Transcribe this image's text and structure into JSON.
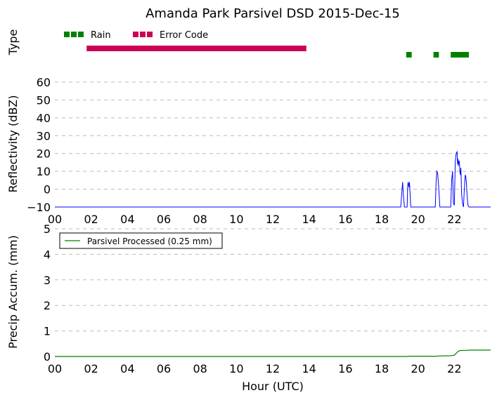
{
  "chart_data": [
    {
      "type": "timeline",
      "title": "Amanda Park Parsivel DSD 2015-Dec-15",
      "ylabel": "Type",
      "legend": [
        {
          "label": "Rain",
          "color": "#008000"
        },
        {
          "label": "Error Code",
          "color": "#cc0055"
        }
      ],
      "legend_position": "top-left",
      "xlim": [
        0,
        24
      ],
      "series": [
        {
          "name": "Error Code",
          "color": "#cc0055",
          "intervals": [
            [
              1.75,
              13.85
            ]
          ]
        },
        {
          "name": "Rain",
          "color": "#008000",
          "intervals": [
            [
              19.35,
              19.65
            ],
            [
              20.85,
              21.15
            ],
            [
              21.8,
              22.8
            ]
          ]
        }
      ]
    },
    {
      "type": "line",
      "ylabel": "Reflectivity (dBZ)",
      "xlim": [
        0,
        24
      ],
      "ylim": [
        -10,
        60
      ],
      "yticks": [
        -10,
        0,
        10,
        20,
        30,
        40,
        50,
        60
      ],
      "xticks": [
        "00",
        "02",
        "04",
        "06",
        "08",
        "10",
        "12",
        "14",
        "16",
        "18",
        "20",
        "22"
      ],
      "grid": "horizontal dashed",
      "series": [
        {
          "color": "#0000ff",
          "x": [
            0,
            19.05,
            19.1,
            19.15,
            19.2,
            19.25,
            19.3,
            19.4,
            19.43,
            19.46,
            19.5,
            19.53,
            19.56,
            19.6,
            19.65,
            20.95,
            21.0,
            21.03,
            21.08,
            21.13,
            21.2,
            21.8,
            21.85,
            21.9,
            21.95,
            22.0,
            22.05,
            22.1,
            22.15,
            22.18,
            22.2,
            22.22,
            22.25,
            22.28,
            22.3,
            22.33,
            22.36,
            22.4,
            22.45,
            22.5,
            22.55,
            22.6,
            22.63,
            22.66,
            22.7,
            22.75,
            22.8,
            22.85,
            24
          ],
          "y": [
            -10,
            -10,
            -3,
            4,
            -4,
            -10,
            -10,
            -10,
            2,
            4,
            1,
            4,
            -2,
            -10,
            -10,
            -10,
            5,
            10,
            9,
            2,
            -10,
            -10,
            5,
            10,
            -8,
            -9,
            15,
            20,
            21,
            14,
            17,
            13,
            16,
            15,
            10,
            8,
            12,
            -3,
            -8,
            -10,
            0,
            8,
            7,
            4,
            -3,
            -9,
            -10,
            -10,
            -10
          ]
        }
      ]
    },
    {
      "type": "line",
      "ylabel": "Precip Accum. (mm)",
      "xlabel": "Hour (UTC)",
      "xlim": [
        0,
        24
      ],
      "ylim": [
        0,
        5
      ],
      "yticks": [
        0,
        1,
        2,
        3,
        4,
        5
      ],
      "xticks": [
        "00",
        "02",
        "04",
        "06",
        "08",
        "10",
        "12",
        "14",
        "16",
        "18",
        "20",
        "22"
      ],
      "grid": "horizontal dashed",
      "legend_position": "top-left",
      "series": [
        {
          "name": "Parsivel Processed (0.25 mm)",
          "color": "#008000",
          "x": [
            0,
            19.3,
            19.6,
            21.0,
            21.1,
            21.8,
            22.0,
            22.1,
            22.2,
            22.3,
            22.5,
            22.7,
            22.8,
            24
          ],
          "y": [
            0,
            0,
            0.01,
            0.01,
            0.02,
            0.03,
            0.05,
            0.12,
            0.2,
            0.23,
            0.24,
            0.24,
            0.25,
            0.25
          ]
        }
      ]
    }
  ]
}
